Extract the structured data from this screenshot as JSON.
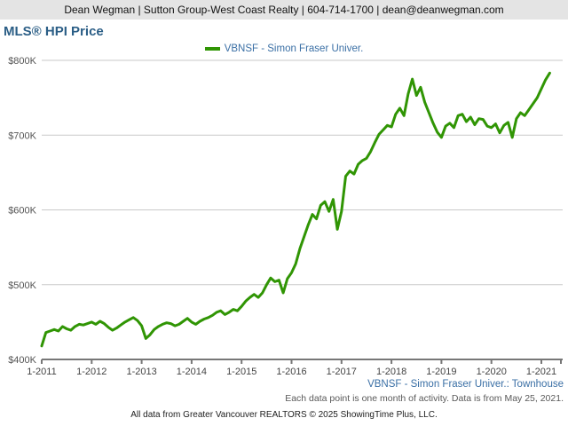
{
  "banner": {
    "text": "Dean Wegman | Sutton Group-West Coast Realty | 604-714-1700 | dean@deanwegman.com"
  },
  "title": "MLS® HPI Price",
  "legend": {
    "label": "VBNSF - Simon Fraser Univer.",
    "swatch_color": "#309504"
  },
  "footer": {
    "series_label": "VBNSF - Simon Fraser Univer.: Townhouse",
    "note": "Each data point is one month of activity. Data is from May 25, 2021.",
    "copyright": "All data from Greater Vancouver REALTORS © 2025 ShowingTime Plus, LLC."
  },
  "colors": {
    "line": "#309504",
    "gridline": "#c9c9c9",
    "axis": "#777777",
    "tick_label": "#444444",
    "y_label": "#555555",
    "title": "#2b5e86",
    "legend_text": "#3a6fa5",
    "banner_bg": "#e4e4e4"
  },
  "chart_data": {
    "type": "line",
    "title": "MLS® HPI Price",
    "xlabel": "",
    "ylabel": "",
    "legend_position": "top-center",
    "grid": true,
    "ylim": [
      400,
      800
    ],
    "y_tick_values": [
      400,
      500,
      600,
      700,
      800
    ],
    "y_tick_labels": [
      "$400K",
      "$500K",
      "$600K",
      "$700K",
      "$800K"
    ],
    "x_tick_labels": [
      "1-2011",
      "1-2012",
      "1-2013",
      "1-2014",
      "1-2015",
      "1-2016",
      "1-2017",
      "1-2018",
      "1-2019",
      "1-2020",
      "1-2021"
    ],
    "x_tick_month_indices": [
      0,
      12,
      24,
      36,
      48,
      60,
      72,
      84,
      96,
      108,
      120
    ],
    "points_are": "monthly values in $K from 1-2011 to 3-2021",
    "series": [
      {
        "name": "VBNSF - Simon Fraser Univer.: Townhouse",
        "values": [
          418,
          436,
          438,
          440,
          438,
          444,
          441,
          439,
          444,
          447,
          446,
          448,
          450,
          447,
          451,
          448,
          443,
          439,
          442,
          446,
          450,
          453,
          456,
          452,
          445,
          428,
          433,
          440,
          444,
          447,
          449,
          448,
          445,
          447,
          451,
          455,
          450,
          447,
          451,
          454,
          456,
          459,
          463,
          465,
          460,
          463,
          467,
          465,
          471,
          478,
          483,
          487,
          483,
          489,
          500,
          509,
          504,
          506,
          489,
          508,
          516,
          528,
          548,
          564,
          580,
          594,
          588,
          606,
          611,
          598,
          614,
          574,
          598,
          645,
          652,
          648,
          661,
          666,
          669,
          678,
          690,
          701,
          707,
          713,
          711,
          728,
          736,
          726,
          755,
          775,
          753,
          764,
          744,
          730,
          716,
          704,
          697,
          712,
          716,
          710,
          726,
          728,
          718,
          724,
          714,
          722,
          721,
          712,
          710,
          715,
          703,
          713,
          717,
          697,
          722,
          730,
          726,
          734,
          742,
          750,
          762,
          774,
          783
        ]
      }
    ]
  }
}
